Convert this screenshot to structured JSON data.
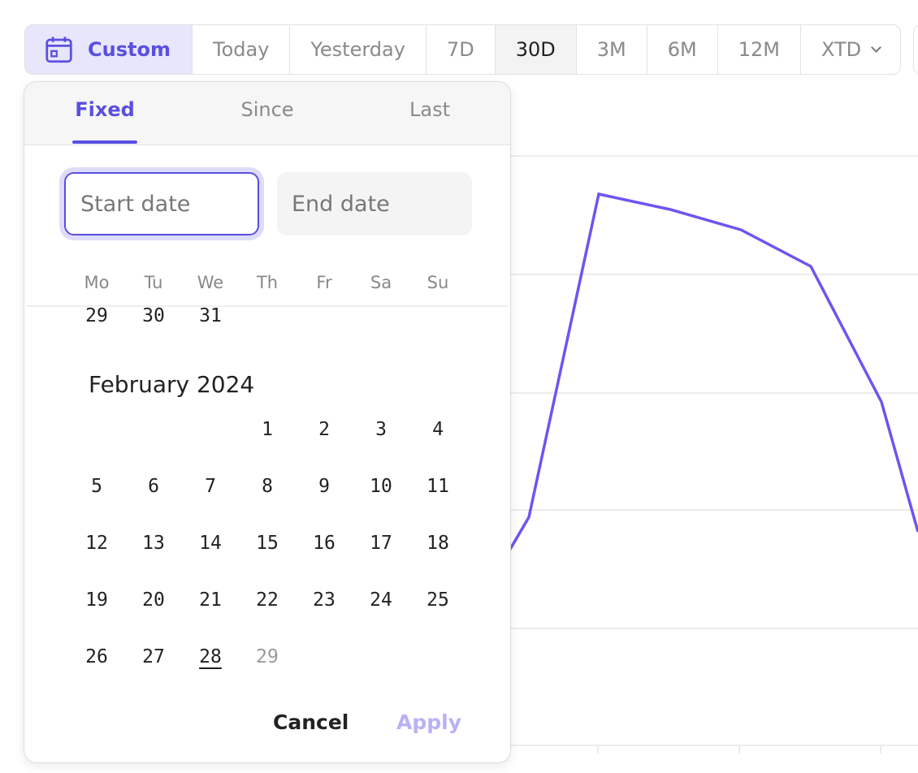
{
  "toolbar": {
    "custom": "Custom",
    "ranges": [
      "Today",
      "Yesterday",
      "7D",
      "30D",
      "3M",
      "6M",
      "12M",
      "XTD"
    ]
  },
  "popover": {
    "tabs": [
      "Fixed",
      "Since",
      "Last"
    ],
    "start_placeholder": "Start date",
    "end_placeholder": "End date",
    "weekdays": [
      "Mo",
      "Tu",
      "We",
      "Th",
      "Fr",
      "Sa",
      "Su"
    ],
    "previous_days": [
      29,
      30,
      31
    ],
    "month_title": "February 2024",
    "days": [
      1,
      2,
      3,
      4,
      5,
      6,
      7,
      8,
      9,
      10,
      11,
      12,
      13,
      14,
      15,
      16,
      17,
      18,
      19,
      20,
      21,
      22,
      23,
      24,
      25,
      26,
      27,
      28,
      29
    ],
    "cancel": "Cancel",
    "apply": "Apply"
  }
}
